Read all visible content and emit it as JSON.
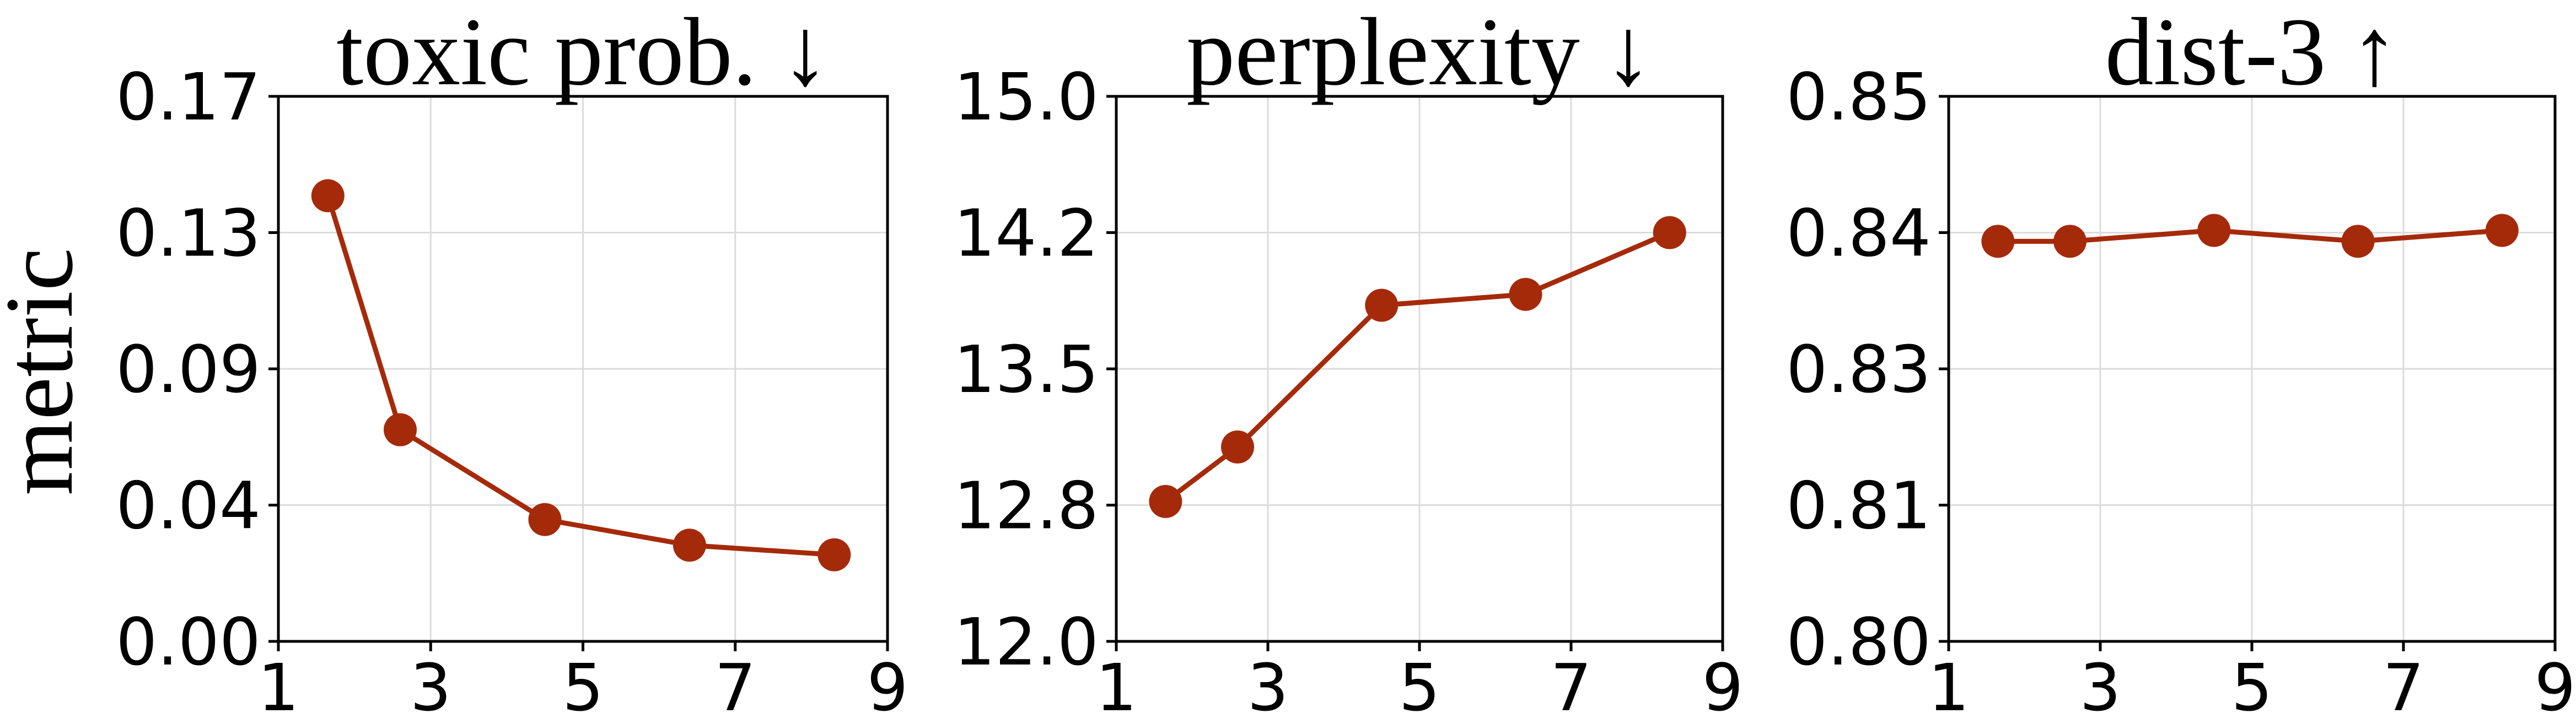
{
  "figure": {
    "ylabel": "metric"
  },
  "chart_data": [
    {
      "type": "line",
      "title": "toxic prob. ↓",
      "xlabel": "",
      "ylabel": "metric",
      "xlim": [
        1,
        9
      ],
      "ylim": [
        0.0,
        0.17
      ],
      "xticks": [
        "1",
        "3",
        "5",
        "7",
        "9"
      ],
      "yticks": [
        "0.00",
        "0.04",
        "0.09",
        "0.13",
        "0.17"
      ],
      "grid": true,
      "series": [
        {
          "color": "#a52a0a",
          "x": [
            1.65,
            2.6,
            4.5,
            6.4,
            8.3
          ],
          "values": [
            0.139,
            0.066,
            0.038,
            0.03,
            0.027
          ]
        }
      ]
    },
    {
      "type": "line",
      "title": "perplexity ↓",
      "xlabel": "",
      "ylabel": "",
      "xlim": [
        1,
        9
      ],
      "ylim": [
        12.0,
        15.0
      ],
      "xticks": [
        "1",
        "3",
        "5",
        "7",
        "9"
      ],
      "yticks": [
        "12.0",
        "12.8",
        "13.5",
        "14.2",
        "15.0"
      ],
      "grid": true,
      "series": [
        {
          "color": "#a52a0a",
          "x": [
            1.65,
            2.6,
            4.5,
            6.4,
            8.3
          ],
          "values": [
            12.77,
            13.07,
            13.85,
            13.91,
            14.25
          ]
        }
      ]
    },
    {
      "type": "line",
      "title": "dist-3 ↑",
      "xlabel": "",
      "ylabel": "",
      "xlim": [
        1,
        9
      ],
      "ylim": [
        0.8,
        0.85
      ],
      "xticks": [
        "1",
        "3",
        "5",
        "7",
        "9"
      ],
      "yticks": [
        "0.80",
        "0.81",
        "0.83",
        "0.84",
        "0.85"
      ],
      "grid": true,
      "series": [
        {
          "color": "#a52a0a",
          "x": [
            1.65,
            2.6,
            4.5,
            6.4,
            8.3
          ],
          "values": [
            0.8367,
            0.8367,
            0.8377,
            0.8367,
            0.8377
          ]
        }
      ]
    }
  ]
}
